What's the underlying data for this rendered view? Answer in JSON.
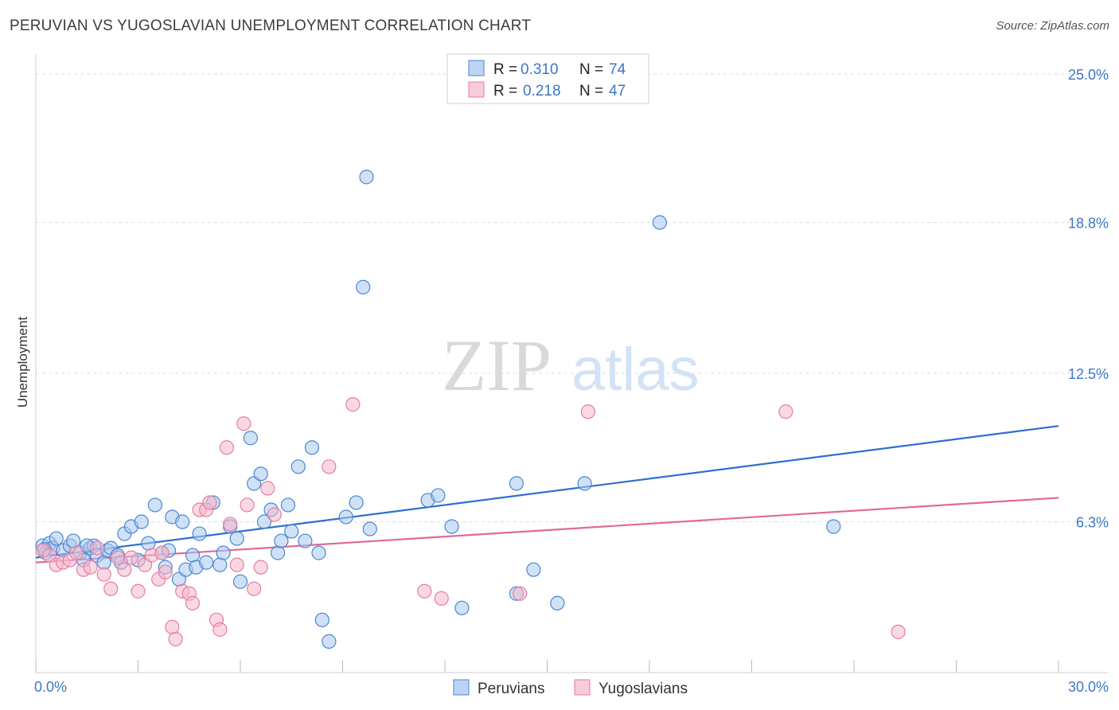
{
  "title": "PERUVIAN VS YUGOSLAVIAN UNEMPLOYMENT CORRELATION CHART",
  "source": "Source: ZipAtlas.com",
  "watermark": {
    "part1": "ZIP",
    "part2": "atlas"
  },
  "colors": {
    "blue": "#4a86d4",
    "blue_fill": "#aac8ef",
    "pink": "#e47ea0",
    "pink_fill": "#f5b8cc",
    "blue_line": "#2e6fcf",
    "pink_line": "#e06a94",
    "grid": "#dddddd",
    "label": "#3d76c9"
  },
  "chart_data": {
    "type": "scatter",
    "title": "PERUVIAN VS YUGOSLAVIAN UNEMPLOYMENT CORRELATION CHART",
    "xlabel": "",
    "ylabel": "Unemployment",
    "xlim": [
      0,
      30
    ],
    "ylim": [
      0,
      25.5
    ],
    "x_tick_labels": [
      "0.0%",
      "30.0%"
    ],
    "y_ticks": [
      6.3,
      12.5,
      18.8,
      25.0
    ],
    "y_tick_labels": [
      "6.3%",
      "12.5%",
      "18.8%",
      "25.0%"
    ],
    "legend": [
      {
        "r_label": "R =",
        "r_value": "0.310",
        "n_label": "N =",
        "n_value": "74"
      },
      {
        "r_label": "R =",
        "r_value": "0.218",
        "n_label": "N =",
        "n_value": "47"
      }
    ],
    "series": [
      {
        "name": "Peruvians",
        "trend": {
          "x0": 0,
          "y0": 4.8,
          "x1": 30,
          "y1": 10.3
        },
        "points": [
          [
            0.2,
            5.3
          ],
          [
            0.3,
            5.0
          ],
          [
            0.4,
            5.4
          ],
          [
            0.5,
            5.2
          ],
          [
            0.6,
            5.6
          ],
          [
            0.8,
            5.1
          ],
          [
            1.0,
            5.3
          ],
          [
            1.1,
            5.5
          ],
          [
            1.3,
            5.0
          ],
          [
            1.4,
            4.7
          ],
          [
            1.6,
            5.2
          ],
          [
            1.7,
            5.3
          ],
          [
            1.8,
            4.9
          ],
          [
            2.0,
            4.6
          ],
          [
            2.1,
            5.1
          ],
          [
            2.2,
            5.2
          ],
          [
            2.4,
            4.9
          ],
          [
            2.5,
            4.6
          ],
          [
            2.6,
            5.8
          ],
          [
            2.8,
            6.1
          ],
          [
            3.0,
            4.7
          ],
          [
            3.1,
            6.3
          ],
          [
            3.3,
            5.4
          ],
          [
            3.5,
            7.0
          ],
          [
            3.7,
            5.0
          ],
          [
            3.8,
            4.4
          ],
          [
            3.9,
            5.1
          ],
          [
            4.0,
            6.5
          ],
          [
            4.2,
            3.9
          ],
          [
            4.3,
            6.3
          ],
          [
            4.4,
            4.3
          ],
          [
            4.6,
            4.9
          ],
          [
            4.7,
            4.4
          ],
          [
            4.8,
            5.8
          ],
          [
            5.0,
            4.6
          ],
          [
            5.2,
            7.1
          ],
          [
            5.4,
            4.5
          ],
          [
            5.5,
            5.0
          ],
          [
            5.7,
            6.1
          ],
          [
            5.9,
            5.6
          ],
          [
            6.0,
            3.8
          ],
          [
            6.3,
            9.8
          ],
          [
            6.4,
            7.9
          ],
          [
            6.6,
            8.3
          ],
          [
            6.7,
            6.3
          ],
          [
            6.9,
            6.8
          ],
          [
            7.1,
            5.0
          ],
          [
            7.2,
            5.5
          ],
          [
            7.4,
            7.0
          ],
          [
            7.5,
            5.9
          ],
          [
            7.7,
            8.6
          ],
          [
            7.9,
            5.5
          ],
          [
            8.1,
            9.4
          ],
          [
            8.3,
            5.0
          ],
          [
            8.4,
            2.2
          ],
          [
            8.6,
            1.3
          ],
          [
            9.1,
            6.5
          ],
          [
            9.4,
            7.1
          ],
          [
            9.6,
            16.1
          ],
          [
            9.8,
            6.0
          ],
          [
            9.7,
            20.7
          ],
          [
            11.5,
            7.2
          ],
          [
            11.8,
            7.4
          ],
          [
            12.2,
            6.1
          ],
          [
            12.5,
            2.7
          ],
          [
            14.1,
            3.3
          ],
          [
            14.1,
            7.9
          ],
          [
            14.6,
            4.3
          ],
          [
            15.3,
            2.9
          ],
          [
            16.1,
            7.9
          ],
          [
            18.3,
            18.8
          ],
          [
            23.4,
            6.1
          ],
          [
            0.25,
            5.15
          ],
          [
            1.5,
            5.3
          ]
        ]
      },
      {
        "name": "Yugoslavians",
        "trend": {
          "x0": 0,
          "y0": 4.6,
          "x1": 30,
          "y1": 7.3
        },
        "points": [
          [
            0.2,
            5.1
          ],
          [
            0.4,
            4.9
          ],
          [
            0.6,
            4.5
          ],
          [
            0.8,
            4.6
          ],
          [
            1.0,
            4.7
          ],
          [
            1.2,
            5.0
          ],
          [
            1.4,
            4.3
          ],
          [
            1.6,
            4.4
          ],
          [
            1.8,
            5.2
          ],
          [
            2.0,
            4.1
          ],
          [
            2.2,
            3.5
          ],
          [
            2.4,
            4.8
          ],
          [
            2.6,
            4.3
          ],
          [
            2.8,
            4.8
          ],
          [
            3.0,
            3.4
          ],
          [
            3.2,
            4.5
          ],
          [
            3.4,
            4.9
          ],
          [
            3.6,
            3.9
          ],
          [
            3.8,
            4.2
          ],
          [
            4.0,
            1.9
          ],
          [
            4.1,
            1.4
          ],
          [
            4.3,
            3.4
          ],
          [
            4.5,
            3.3
          ],
          [
            4.6,
            2.9
          ],
          [
            4.8,
            6.8
          ],
          [
            5.0,
            6.8
          ],
          [
            5.1,
            7.1
          ],
          [
            5.3,
            2.2
          ],
          [
            5.4,
            1.8
          ],
          [
            5.6,
            9.4
          ],
          [
            5.7,
            6.2
          ],
          [
            5.9,
            4.5
          ],
          [
            6.1,
            10.4
          ],
          [
            6.2,
            7.0
          ],
          [
            6.4,
            3.5
          ],
          [
            6.6,
            4.4
          ],
          [
            6.8,
            7.7
          ],
          [
            7.0,
            6.6
          ],
          [
            8.6,
            8.6
          ],
          [
            9.3,
            11.2
          ],
          [
            11.4,
            3.4
          ],
          [
            11.9,
            3.1
          ],
          [
            14.2,
            3.3
          ],
          [
            16.2,
            10.9
          ],
          [
            22.0,
            10.9
          ],
          [
            25.3,
            1.7
          ],
          [
            3.7,
            5.0
          ]
        ]
      }
    ]
  },
  "bottom_legend": [
    {
      "label": "Peruvians"
    },
    {
      "label": "Yugoslavians"
    }
  ]
}
